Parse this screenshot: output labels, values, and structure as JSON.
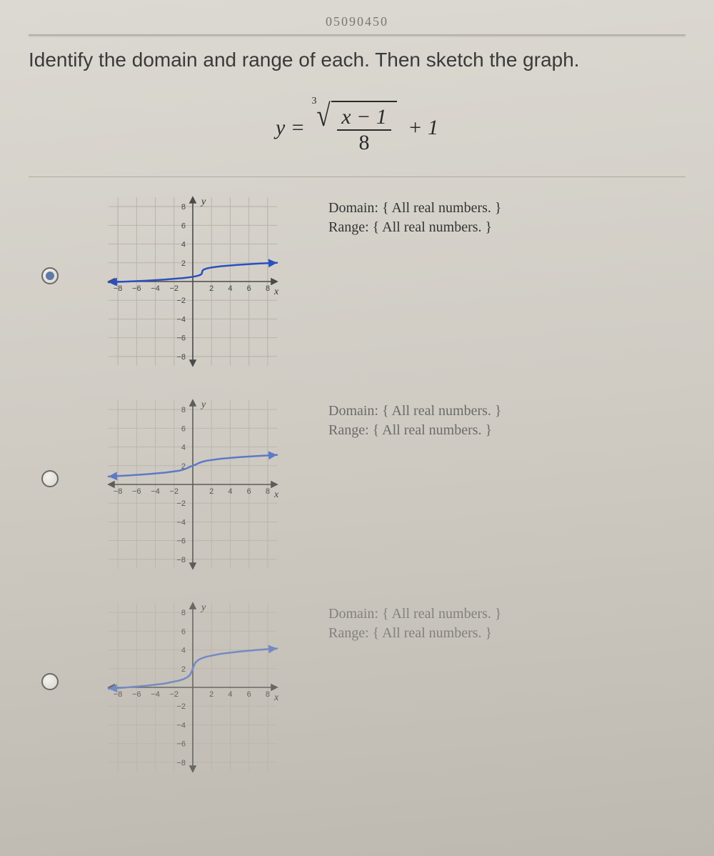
{
  "header_fragment": "05090450",
  "instruction": "Identify the domain and range of each.  Then sketch the graph.",
  "equation": {
    "lhs": "y =",
    "root_index": "3",
    "numerator": "x − 1",
    "denominator": "8",
    "tail": "+ 1"
  },
  "axes": {
    "ticks": [
      -8,
      -6,
      -4,
      -2,
      2,
      4,
      6,
      8
    ],
    "xmin": -9,
    "xmax": 9,
    "ymin": -9,
    "ymax": 9,
    "tick_step": 2,
    "x_label": "x",
    "y_label": "y",
    "gridline_color": "#b8b4ab",
    "axis_color": "#4a4a4a",
    "tick_fontsize": 11,
    "label_fontsize": 14
  },
  "options": [
    {
      "selected": true,
      "domain_text": "Domain: { All real numbers. }",
      "range_text": "Range: { All real numbers. }",
      "curve_color": "#2b4fbf",
      "curve_width": 2.5,
      "curve_points": [
        [
          -9,
          -0.077
        ],
        [
          -7,
          0
        ],
        [
          -5,
          0.0871
        ],
        [
          -3,
          0.206
        ],
        [
          -1,
          0.37
        ],
        [
          0,
          0.5
        ],
        [
          0.5,
          0.603
        ],
        [
          0.8,
          0.708
        ],
        [
          0.95,
          0.817
        ],
        [
          1,
          1
        ],
        [
          1.05,
          1.183
        ],
        [
          1.2,
          1.292
        ],
        [
          1.5,
          1.397
        ],
        [
          2,
          1.5
        ],
        [
          3,
          1.63
        ],
        [
          5,
          1.794
        ],
        [
          7,
          1.913
        ],
        [
          9,
          2
        ]
      ]
    },
    {
      "selected": false,
      "domain_text": "Domain: { All real numbers. }",
      "range_text": "Range: { All real numbers. }",
      "curve_color": "#4a6bc8",
      "curve_width": 2.5,
      "curve_points": [
        [
          -9,
          0.846
        ],
        [
          -7,
          0.957
        ],
        [
          -5,
          1.083
        ],
        [
          -3,
          1.256
        ],
        [
          -1.5,
          1.46
        ],
        [
          -1,
          1.587
        ],
        [
          -0.6,
          1.736
        ],
        [
          -0.3,
          1.888
        ],
        [
          -0.1,
          1.964
        ],
        [
          0,
          2
        ],
        [
          0.1,
          2.036
        ],
        [
          0.3,
          2.112
        ],
        [
          0.6,
          2.264
        ],
        [
          1,
          2.413
        ],
        [
          1.5,
          2.54
        ],
        [
          3,
          2.744
        ],
        [
          5,
          2.917
        ],
        [
          7,
          3.043
        ],
        [
          9,
          3.154
        ]
      ]
    },
    {
      "selected": false,
      "domain_text": "Domain: { All real numbers. }",
      "range_text": "Range: { All real numbers. }",
      "curve_color": "#5a78c8",
      "curve_width": 2.5,
      "curve_points": [
        [
          -9,
          -0.154
        ],
        [
          -7,
          0
        ],
        [
          -5,
          0.174
        ],
        [
          -3,
          0.413
        ],
        [
          -1.5,
          0.717
        ],
        [
          -1,
          0.874
        ],
        [
          -0.6,
          1.072
        ],
        [
          -0.3,
          1.33
        ],
        [
          -0.1,
          1.729
        ],
        [
          0,
          2
        ],
        [
          0.1,
          2.271
        ],
        [
          0.3,
          2.67
        ],
        [
          0.6,
          2.928
        ],
        [
          1,
          3.126
        ],
        [
          1.5,
          3.283
        ],
        [
          3,
          3.587
        ],
        [
          5,
          3.826
        ],
        [
          7,
          4
        ],
        [
          9,
          4.154
        ]
      ]
    }
  ]
}
